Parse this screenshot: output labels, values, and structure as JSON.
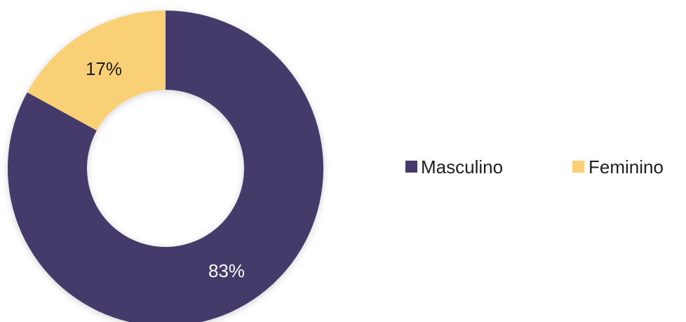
{
  "chart_data": {
    "type": "pie",
    "variant": "donut",
    "series": [
      {
        "name": "Masculino",
        "value": 83,
        "label": "83%",
        "color": "#453a6b",
        "label_color": "#ffffff"
      },
      {
        "name": "Feminino",
        "value": 17,
        "label": "17%",
        "color": "#fad077",
        "label_color": "#1f1f1f"
      }
    ],
    "legend": {
      "placement": "right",
      "items": [
        "Masculino",
        "Feminino"
      ]
    },
    "start_angle_deg": 0,
    "direction": "clockwise"
  }
}
